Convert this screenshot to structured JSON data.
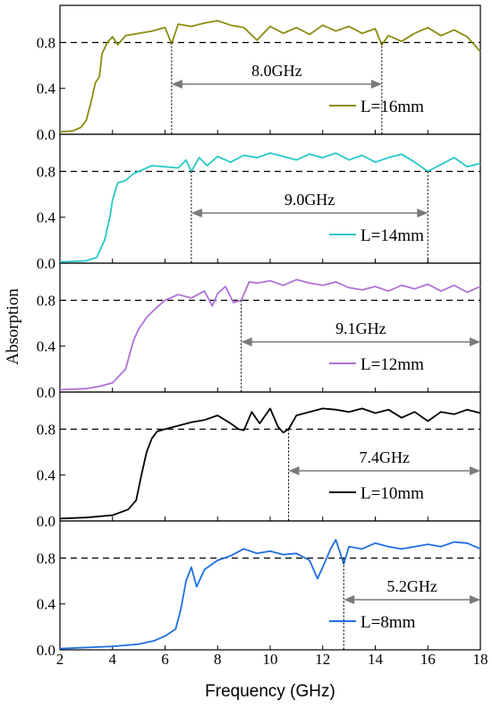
{
  "chart_data": {
    "type": "line",
    "xlabel": "Frequency (GHz)",
    "ylabel": "Absorption",
    "xlim": [
      2,
      18
    ],
    "ylim": [
      0,
      1.0
    ],
    "x_ticks": [
      2,
      4,
      6,
      8,
      10,
      12,
      14,
      16,
      18
    ],
    "y_ticks": [
      "0.0",
      "0.4",
      "0.8"
    ],
    "threshold": 0.8,
    "panels": [
      {
        "name": "L=16mm",
        "color": "#8c8c10",
        "bandwidth_label": "8.0GHz",
        "band_start": 6.25,
        "band_end": 14.25,
        "points": [
          [
            2.0,
            0.02
          ],
          [
            2.5,
            0.03
          ],
          [
            2.8,
            0.06
          ],
          [
            3.0,
            0.12
          ],
          [
            3.2,
            0.3
          ],
          [
            3.35,
            0.45
          ],
          [
            3.5,
            0.5
          ],
          [
            3.6,
            0.7
          ],
          [
            3.8,
            0.8
          ],
          [
            4.0,
            0.85
          ],
          [
            4.2,
            0.78
          ],
          [
            4.5,
            0.86
          ],
          [
            5.0,
            0.88
          ],
          [
            5.5,
            0.9
          ],
          [
            6.0,
            0.93
          ],
          [
            6.25,
            0.79
          ],
          [
            6.5,
            0.96
          ],
          [
            7.0,
            0.94
          ],
          [
            7.5,
            0.97
          ],
          [
            8.0,
            0.99
          ],
          [
            8.5,
            0.95
          ],
          [
            9.0,
            0.93
          ],
          [
            9.5,
            0.82
          ],
          [
            10.0,
            0.94
          ],
          [
            10.5,
            0.88
          ],
          [
            11.0,
            0.93
          ],
          [
            11.5,
            0.87
          ],
          [
            12.0,
            0.95
          ],
          [
            12.5,
            0.9
          ],
          [
            13.0,
            0.94
          ],
          [
            13.5,
            0.88
          ],
          [
            14.0,
            0.92
          ],
          [
            14.25,
            0.78
          ],
          [
            14.5,
            0.86
          ],
          [
            15.0,
            0.81
          ],
          [
            15.5,
            0.88
          ],
          [
            16.0,
            0.93
          ],
          [
            16.5,
            0.86
          ],
          [
            17.0,
            0.91
          ],
          [
            17.5,
            0.85
          ],
          [
            18.0,
            0.72
          ]
        ]
      },
      {
        "name": "L=14mm",
        "color": "#27c8c8",
        "bandwidth_label": "9.0GHz",
        "band_start": 7.0,
        "band_end": 16.0,
        "points": [
          [
            2.0,
            0.01
          ],
          [
            3.0,
            0.02
          ],
          [
            3.4,
            0.05
          ],
          [
            3.7,
            0.2
          ],
          [
            3.9,
            0.4
          ],
          [
            4.0,
            0.55
          ],
          [
            4.2,
            0.7
          ],
          [
            4.5,
            0.72
          ],
          [
            4.8,
            0.78
          ],
          [
            5.0,
            0.8
          ],
          [
            5.5,
            0.85
          ],
          [
            6.0,
            0.84
          ],
          [
            6.5,
            0.83
          ],
          [
            6.8,
            0.9
          ],
          [
            7.0,
            0.8
          ],
          [
            7.3,
            0.92
          ],
          [
            7.6,
            0.85
          ],
          [
            8.0,
            0.93
          ],
          [
            8.5,
            0.88
          ],
          [
            9.0,
            0.94
          ],
          [
            9.5,
            0.92
          ],
          [
            10.0,
            0.96
          ],
          [
            10.5,
            0.93
          ],
          [
            11.0,
            0.9
          ],
          [
            11.5,
            0.95
          ],
          [
            12.0,
            0.92
          ],
          [
            12.5,
            0.96
          ],
          [
            13.0,
            0.9
          ],
          [
            13.5,
            0.94
          ],
          [
            14.0,
            0.88
          ],
          [
            14.5,
            0.92
          ],
          [
            15.0,
            0.95
          ],
          [
            15.5,
            0.88
          ],
          [
            16.0,
            0.8
          ],
          [
            16.5,
            0.86
          ],
          [
            17.0,
            0.92
          ],
          [
            17.5,
            0.84
          ],
          [
            18.0,
            0.87
          ]
        ]
      },
      {
        "name": "L=12mm",
        "color": "#b071d6",
        "bandwidth_label": "9.1GHz",
        "band_start": 8.9,
        "band_end": 18.0,
        "points": [
          [
            2.0,
            0.02
          ],
          [
            3.0,
            0.03
          ],
          [
            3.5,
            0.05
          ],
          [
            4.0,
            0.08
          ],
          [
            4.5,
            0.2
          ],
          [
            4.8,
            0.45
          ],
          [
            5.0,
            0.55
          ],
          [
            5.3,
            0.65
          ],
          [
            5.6,
            0.72
          ],
          [
            6.0,
            0.8
          ],
          [
            6.5,
            0.85
          ],
          [
            7.0,
            0.82
          ],
          [
            7.5,
            0.88
          ],
          [
            7.8,
            0.75
          ],
          [
            8.0,
            0.86
          ],
          [
            8.3,
            0.92
          ],
          [
            8.6,
            0.78
          ],
          [
            8.9,
            0.8
          ],
          [
            9.2,
            0.96
          ],
          [
            9.5,
            0.95
          ],
          [
            10.0,
            0.97
          ],
          [
            10.5,
            0.93
          ],
          [
            11.0,
            0.98
          ],
          [
            11.5,
            0.95
          ],
          [
            12.0,
            0.93
          ],
          [
            12.5,
            0.96
          ],
          [
            13.0,
            0.91
          ],
          [
            13.5,
            0.89
          ],
          [
            14.0,
            0.92
          ],
          [
            14.5,
            0.88
          ],
          [
            15.0,
            0.93
          ],
          [
            15.5,
            0.9
          ],
          [
            16.0,
            0.94
          ],
          [
            16.5,
            0.88
          ],
          [
            17.0,
            0.93
          ],
          [
            17.5,
            0.87
          ],
          [
            18.0,
            0.92
          ]
        ]
      },
      {
        "name": "L=10mm",
        "color": "#000000",
        "bandwidth_label": "7.4GHz",
        "band_start": 10.7,
        "band_end": 18.0,
        "points": [
          [
            2.0,
            0.02
          ],
          [
            3.0,
            0.03
          ],
          [
            4.0,
            0.05
          ],
          [
            4.6,
            0.1
          ],
          [
            4.9,
            0.18
          ],
          [
            5.1,
            0.4
          ],
          [
            5.3,
            0.6
          ],
          [
            5.5,
            0.72
          ],
          [
            5.7,
            0.78
          ],
          [
            6.0,
            0.8
          ],
          [
            6.5,
            0.83
          ],
          [
            7.0,
            0.86
          ],
          [
            7.5,
            0.88
          ],
          [
            8.0,
            0.92
          ],
          [
            8.5,
            0.85
          ],
          [
            8.8,
            0.8
          ],
          [
            9.0,
            0.79
          ],
          [
            9.3,
            0.95
          ],
          [
            9.6,
            0.85
          ],
          [
            10.0,
            0.98
          ],
          [
            10.3,
            0.82
          ],
          [
            10.5,
            0.77
          ],
          [
            10.7,
            0.8
          ],
          [
            11.0,
            0.92
          ],
          [
            11.5,
            0.95
          ],
          [
            12.0,
            0.98
          ],
          [
            12.5,
            0.97
          ],
          [
            13.0,
            0.95
          ],
          [
            13.5,
            0.98
          ],
          [
            14.0,
            0.94
          ],
          [
            14.5,
            0.97
          ],
          [
            15.0,
            0.9
          ],
          [
            15.5,
            0.95
          ],
          [
            16.0,
            0.87
          ],
          [
            16.5,
            0.95
          ],
          [
            17.0,
            0.93
          ],
          [
            17.5,
            0.97
          ],
          [
            18.0,
            0.94
          ]
        ]
      },
      {
        "name": "L=8mm",
        "color": "#1f6fe0",
        "bandwidth_label": "5.2GHz",
        "band_start": 12.8,
        "band_end": 18.0,
        "points": [
          [
            2.0,
            0.01
          ],
          [
            3.0,
            0.02
          ],
          [
            4.0,
            0.03
          ],
          [
            5.0,
            0.05
          ],
          [
            5.6,
            0.08
          ],
          [
            6.0,
            0.12
          ],
          [
            6.4,
            0.18
          ],
          [
            6.6,
            0.35
          ],
          [
            6.8,
            0.6
          ],
          [
            7.0,
            0.72
          ],
          [
            7.2,
            0.55
          ],
          [
            7.5,
            0.7
          ],
          [
            8.0,
            0.78
          ],
          [
            8.5,
            0.82
          ],
          [
            9.0,
            0.88
          ],
          [
            9.5,
            0.84
          ],
          [
            10.0,
            0.86
          ],
          [
            10.5,
            0.83
          ],
          [
            11.0,
            0.84
          ],
          [
            11.5,
            0.78
          ],
          [
            11.8,
            0.62
          ],
          [
            12.0,
            0.72
          ],
          [
            12.3,
            0.88
          ],
          [
            12.5,
            0.96
          ],
          [
            12.8,
            0.75
          ],
          [
            13.0,
            0.9
          ],
          [
            13.5,
            0.88
          ],
          [
            14.0,
            0.93
          ],
          [
            14.5,
            0.9
          ],
          [
            15.0,
            0.88
          ],
          [
            15.5,
            0.9
          ],
          [
            16.0,
            0.92
          ],
          [
            16.5,
            0.9
          ],
          [
            17.0,
            0.94
          ],
          [
            17.5,
            0.93
          ],
          [
            18.0,
            0.88
          ]
        ]
      }
    ]
  }
}
